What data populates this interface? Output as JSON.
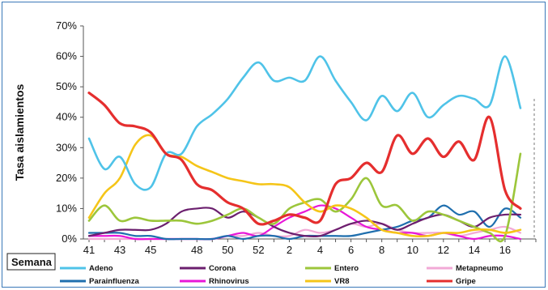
{
  "chart_data": {
    "type": "line",
    "ylabel": "Tasa aislamientos",
    "xlabel": "Semana",
    "ylim": [
      0,
      70
    ],
    "yticks": [
      "0%",
      "10%",
      "20%",
      "30%",
      "40%",
      "50%",
      "60%",
      "70%"
    ],
    "x_tick_labels": [
      "41",
      "43",
      "45",
      "48",
      "50",
      "52",
      "2",
      "4",
      "6",
      "8",
      "10",
      "12",
      "14",
      "16"
    ],
    "x": [
      41,
      42,
      43,
      44,
      45,
      46,
      47,
      48,
      49,
      50,
      51,
      52,
      1,
      2,
      3,
      4,
      5,
      6,
      7,
      8,
      9,
      10,
      11,
      12,
      13,
      14,
      15,
      16,
      17,
      18
    ],
    "legend_position": "bottom",
    "series": [
      {
        "name": "Adeno",
        "color": "#4fc3e8",
        "values": [
          33,
          23,
          27,
          18,
          17,
          28,
          28,
          37,
          41,
          46,
          53,
          58,
          52,
          53,
          52,
          60,
          52,
          45,
          39,
          47,
          42,
          48,
          40,
          44,
          47,
          46,
          44,
          60,
          43,
          null
        ]
      },
      {
        "name": "Corona",
        "color": "#6b1f6e",
        "values": [
          1,
          2,
          3,
          3,
          3,
          5,
          9,
          10,
          10,
          7,
          9,
          7,
          4,
          2,
          1,
          1,
          3,
          5,
          6,
          5,
          3,
          5,
          7,
          8,
          6,
          4,
          7,
          8,
          8,
          null
        ]
      },
      {
        "name": "Entero",
        "color": "#9cc63b",
        "values": [
          6,
          11,
          6,
          7,
          6,
          6,
          6,
          5,
          6,
          8,
          10,
          7,
          5,
          10,
          12,
          13,
          9,
          13,
          20,
          11,
          11,
          6,
          9,
          8,
          6,
          4,
          2,
          1,
          28,
          null
        ]
      },
      {
        "name": "Metapneumo",
        "color": "#f2a9d6",
        "values": [
          0,
          0,
          0,
          0,
          0,
          0,
          0,
          0,
          0,
          1,
          1,
          2,
          1,
          1,
          3,
          2,
          3,
          5,
          4,
          5,
          3,
          2,
          2,
          2,
          1,
          2,
          3,
          4,
          2,
          null
        ]
      },
      {
        "name": "Parainfluenza",
        "color": "#1f6fae",
        "values": [
          2,
          2,
          2,
          1,
          1,
          0,
          0,
          0,
          0,
          1,
          0,
          1,
          1,
          0,
          1,
          1,
          1,
          1,
          2,
          3,
          4,
          6,
          7,
          11,
          8,
          9,
          4,
          10,
          7,
          null
        ]
      },
      {
        "name": "Rhinovirus",
        "color": "#e817d8",
        "values": [
          1,
          1,
          1,
          0,
          0,
          0,
          0,
          0,
          0,
          1,
          2,
          1,
          4,
          7,
          9,
          11,
          10,
          7,
          4,
          3,
          2,
          2,
          1,
          2,
          1,
          0,
          1,
          1,
          0,
          null
        ]
      },
      {
        "name": "VR8",
        "color": "#f5c518",
        "values": [
          7,
          15,
          20,
          31,
          34,
          28,
          27,
          24,
          22,
          20,
          19,
          18,
          18,
          17,
          12,
          9,
          11,
          10,
          7,
          3,
          2,
          1,
          1,
          2,
          2,
          3,
          3,
          2,
          3,
          null
        ]
      },
      {
        "name": "Gripe",
        "color": "#e52e2e",
        "values": [
          48,
          44,
          38,
          37,
          35,
          28,
          26,
          18,
          16,
          12,
          10,
          5,
          6,
          8,
          7,
          6,
          18,
          20,
          25,
          22,
          34,
          28,
          33,
          27,
          32,
          26,
          40,
          16,
          10,
          null
        ]
      }
    ]
  }
}
